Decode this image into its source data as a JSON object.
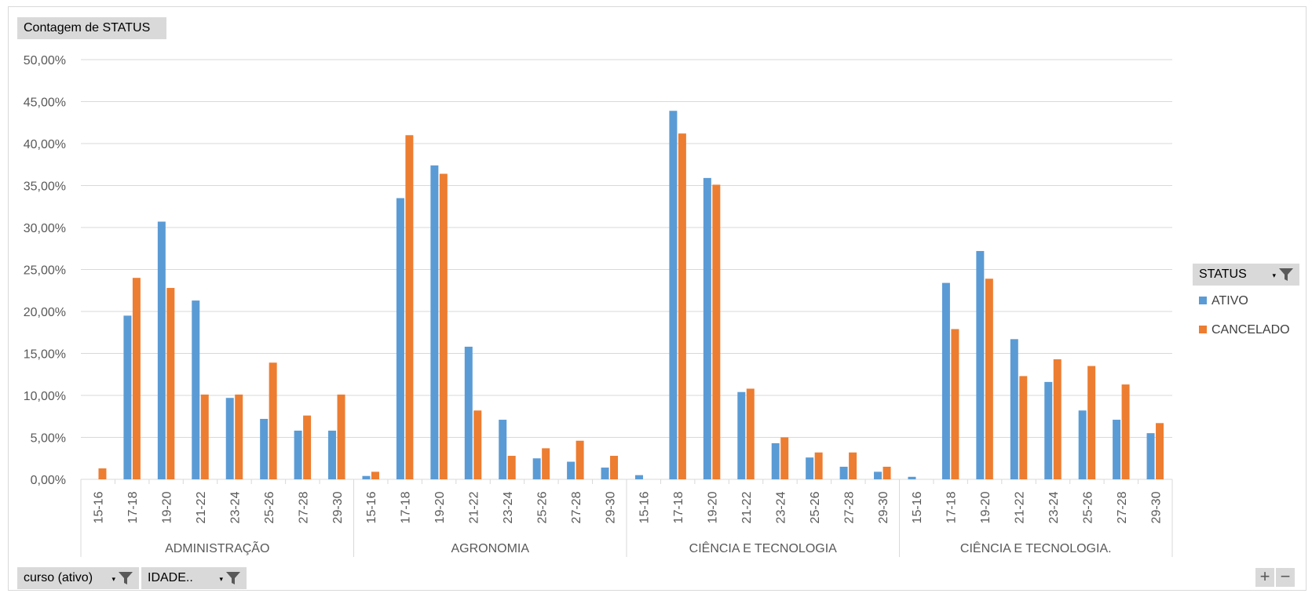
{
  "field_buttons": {
    "value_label": "Contagem de STATUS",
    "legend_label": "STATUS",
    "axis_fields": [
      "curso (ativo)",
      "IDADE.."
    ]
  },
  "zoom": {
    "plus": "+",
    "minus": "−"
  },
  "colors": {
    "ativo": "#5B9BD5",
    "cancelado": "#ED7D31",
    "grid": "#d9d9d9",
    "axis_text": "#595959"
  },
  "icons": {
    "filter": "filter-icon",
    "dropdown": "dropdown-arrow-icon"
  },
  "chart_data": {
    "type": "bar",
    "title": "",
    "xlabel": "",
    "ylabel": "",
    "ylim": [
      0,
      50
    ],
    "y_ticks": [
      "0,00%",
      "5,00%",
      "10,00%",
      "15,00%",
      "20,00%",
      "25,00%",
      "30,00%",
      "35,00%",
      "40,00%",
      "45,00%",
      "50,00%"
    ],
    "grid": true,
    "legend_position": "right",
    "age_categories": [
      "15-16",
      "17-18",
      "19-20",
      "21-22",
      "23-24",
      "25-26",
      "27-28",
      "29-30"
    ],
    "groups": [
      {
        "name": "ADMINISTRAÇÃO",
        "series": [
          {
            "name": "ATIVO",
            "values": [
              0,
              19.5,
              30.7,
              21.3,
              9.7,
              7.2,
              5.8,
              5.8
            ]
          },
          {
            "name": "CANCELADO",
            "values": [
              1.3,
              24.0,
              22.8,
              10.1,
              10.1,
              13.9,
              7.6,
              10.1
            ]
          }
        ]
      },
      {
        "name": "AGRONOMIA",
        "series": [
          {
            "name": "ATIVO",
            "values": [
              0.4,
              33.5,
              37.4,
              15.8,
              7.1,
              2.5,
              2.1,
              1.4
            ]
          },
          {
            "name": "CANCELADO",
            "values": [
              0.9,
              41.0,
              36.4,
              8.2,
              2.8,
              3.7,
              4.6,
              2.8
            ]
          }
        ]
      },
      {
        "name": "CIÊNCIA E TECNOLOGIA",
        "series": [
          {
            "name": "ATIVO",
            "values": [
              0.5,
              43.9,
              35.9,
              10.4,
              4.3,
              2.6,
              1.5,
              0.9
            ]
          },
          {
            "name": "CANCELADO",
            "values": [
              0,
              41.2,
              35.1,
              10.8,
              5.0,
              3.2,
              3.2,
              1.5
            ]
          }
        ]
      },
      {
        "name": "CIÊNCIA E TECNOLOGIA.",
        "series": [
          {
            "name": "ATIVO",
            "values": [
              0.3,
              23.4,
              27.2,
              16.7,
              11.6,
              8.2,
              7.1,
              5.5
            ]
          },
          {
            "name": "CANCELADO",
            "values": [
              0,
              17.9,
              23.9,
              12.3,
              14.3,
              13.5,
              11.3,
              6.7
            ]
          }
        ]
      }
    ]
  }
}
